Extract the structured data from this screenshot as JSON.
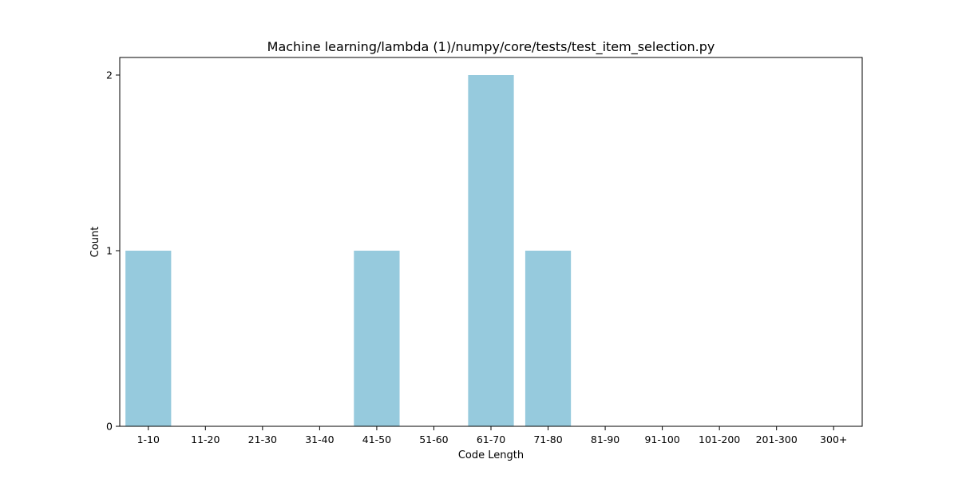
{
  "chart_data": {
    "type": "bar",
    "title": "Machine learning/lambda (1)/numpy/core/tests/test_item_selection.py",
    "xlabel": "Code Length",
    "ylabel": "Count",
    "categories": [
      "1-10",
      "11-20",
      "21-30",
      "31-40",
      "41-50",
      "51-60",
      "61-70",
      "71-80",
      "81-90",
      "91-100",
      "101-200",
      "201-300",
      "300+"
    ],
    "values": [
      1,
      0,
      0,
      0,
      1,
      0,
      2,
      1,
      0,
      0,
      0,
      0,
      0
    ],
    "ylim": [
      0,
      2.1
    ],
    "yticks": [
      0,
      1,
      2
    ],
    "grid": false,
    "bar_color": "#96cadd"
  }
}
